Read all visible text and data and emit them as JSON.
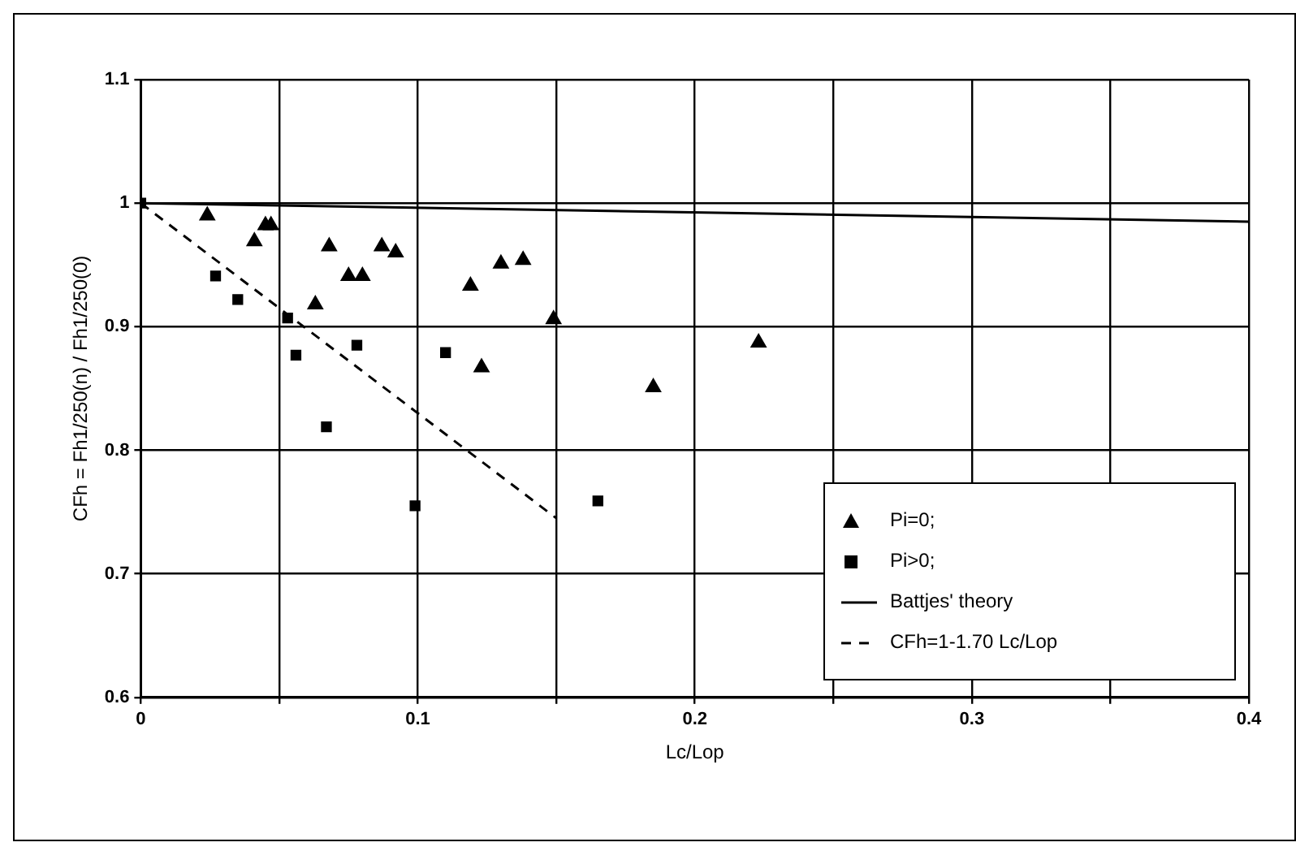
{
  "chart_data": {
    "type": "scatter",
    "xlabel": "Lc/Lop",
    "ylabel": "CFh = Fh1/250(n) / Fh1/250(0)",
    "xlim": [
      0,
      0.4
    ],
    "ylim": [
      0.6,
      1.1
    ],
    "xticks": [
      0,
      {
        "value": 0.05,
        "label": null
      },
      0.1,
      {
        "value": 0.15,
        "label": null
      },
      0.2,
      {
        "value": 0.25,
        "label": null
      },
      0.3,
      {
        "value": 0.35,
        "label": null
      },
      0.4
    ],
    "yticks": [
      0.6,
      0.7,
      0.8,
      0.9,
      1,
      1.1
    ],
    "grid": true,
    "legend": "bottom right",
    "series": [
      {
        "name": "Pi=0;",
        "marker": "triangle",
        "color": "#000000",
        "x": [
          0.024,
          0.045,
          0.047,
          0.041,
          0.068,
          0.087,
          0.092,
          0.075,
          0.08,
          0.119,
          0.063,
          0.13,
          0.138,
          0.149,
          0.123,
          0.185,
          0.223
        ],
        "values": [
          0.99,
          0.982,
          0.982,
          0.969,
          0.965,
          0.965,
          0.96,
          0.941,
          0.941,
          0.933,
          0.918,
          0.951,
          0.954,
          0.906,
          0.867,
          0.851,
          0.887
        ]
      },
      {
        "name": "Pi>0;",
        "marker": "square",
        "color": "#000000",
        "x": [
          0,
          0.027,
          0.035,
          0.053,
          0.056,
          0.078,
          0.11,
          0.067,
          0.099,
          0.165
        ],
        "values": [
          1,
          0.941,
          0.922,
          0.907,
          0.877,
          0.885,
          0.879,
          0.819,
          0.755,
          0.759
        ]
      },
      {
        "name": "Battjes' theory",
        "type": "line",
        "line_style": "solid",
        "color": "#000000",
        "x": [
          0,
          0.4
        ],
        "values": [
          1,
          0.985
        ]
      },
      {
        "name": "CFh=1-1.70 Lc/Lop",
        "type": "line",
        "line_style": "dashed",
        "color": "#000000",
        "x": [
          0,
          0.15
        ],
        "values": [
          1,
          0.745
        ]
      }
    ]
  }
}
